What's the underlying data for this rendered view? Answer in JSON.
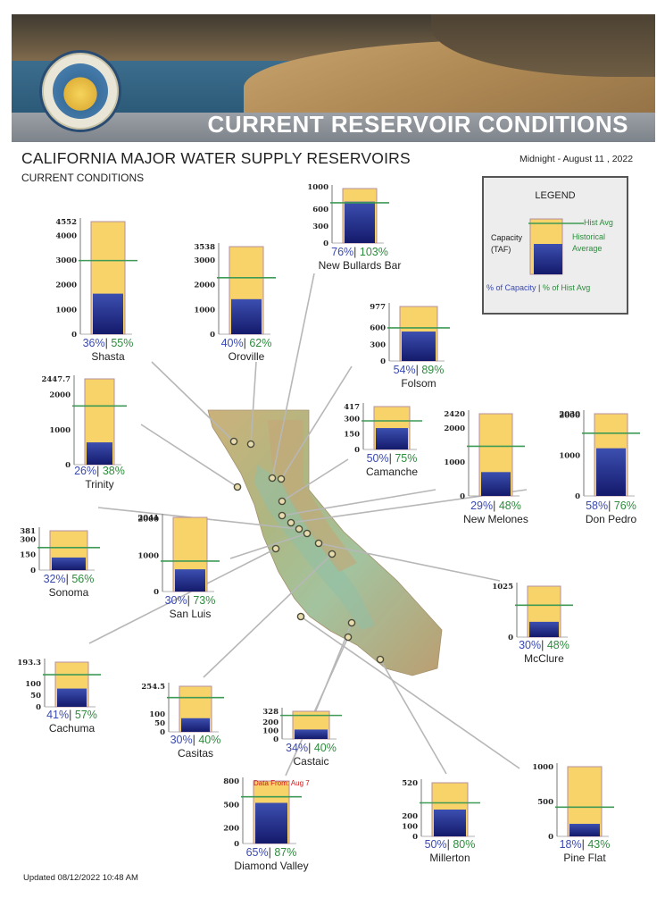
{
  "banner": {
    "title": "CURRENT RESERVOIR CONDITIONS",
    "seal_text": "DEPARTMENT OF WATER RESOURCES · STATE OF CALIFORNIA"
  },
  "header": {
    "title": "CALIFORNIA MAJOR WATER SUPPLY RESERVOIRS",
    "subtitle": "CURRENT CONDITIONS",
    "date": "Midnight - August 11 , 2022"
  },
  "legend": {
    "title": "LEGEND",
    "capacity": "Capacity",
    "capacity_unit": "(TAF)",
    "hist_avg": "Hist Avg",
    "historical": "Historical",
    "average": "Average",
    "pct_capacity": "% of Capacity",
    "separator": "|",
    "pct_hist": "% of Hist Avg"
  },
  "footer": {
    "updated": "Updated 08/12/2022 10:48 AM"
  },
  "colors": {
    "capacity_fill": "#f8d36a",
    "storage_top": "#3c4fb0",
    "storage_bottom": "#141a6b",
    "hist_line": "#3f9a55",
    "pct_capacity": "#3b4ab0",
    "pct_hist": "#2e8b3e"
  },
  "chart_data": [
    {
      "type": "bar",
      "name": "Shasta",
      "capacity": 4552,
      "storage": 1639,
      "hist_avg": 2976,
      "pct_capacity": "36%",
      "pct_hist_avg": "55%",
      "ticks": [
        "4552",
        "4000",
        "3000",
        "2000",
        "1000",
        "0"
      ]
    },
    {
      "type": "bar",
      "name": "Oroville",
      "capacity": 3538,
      "storage": 1415,
      "hist_avg": 2282,
      "pct_capacity": "40%",
      "pct_hist_avg": "62%",
      "ticks": [
        "3538",
        "3000",
        "2000",
        "1000",
        "0"
      ]
    },
    {
      "type": "bar",
      "name": "New Bullards Bar",
      "capacity": 966,
      "storage": 734,
      "hist_avg": 713,
      "pct_capacity": "76%",
      "pct_hist_avg": "103%",
      "ticks": [
        "1000",
        "600",
        "300",
        "0"
      ]
    },
    {
      "type": "bar",
      "name": "Folsom",
      "capacity": 977,
      "storage": 528,
      "hist_avg": 593,
      "pct_capacity": "54%",
      "pct_hist_avg": "89%",
      "ticks": [
        "977",
        "600",
        "300",
        "0"
      ]
    },
    {
      "type": "bar",
      "name": "Trinity",
      "capacity": 2447.7,
      "storage": 636,
      "hist_avg": 1675,
      "pct_capacity": "26%",
      "pct_hist_avg": "38%",
      "ticks": [
        "2447.7",
        "2000",
        "1000",
        "0"
      ]
    },
    {
      "type": "bar",
      "name": "Camanche",
      "capacity": 417,
      "storage": 208,
      "hist_avg": 278,
      "pct_capacity": "50%",
      "pct_hist_avg": "75%",
      "ticks": [
        "417",
        "300",
        "150",
        "0"
      ]
    },
    {
      "type": "bar",
      "name": "New Melones",
      "capacity": 2420,
      "storage": 702,
      "hist_avg": 1462,
      "pct_capacity": "29%",
      "pct_hist_avg": "48%",
      "ticks": [
        "2420",
        "2000",
        "1000",
        "0"
      ]
    },
    {
      "type": "bar",
      "name": "Don Pedro",
      "capacity": 2030,
      "storage": 1177,
      "hist_avg": 1549,
      "pct_capacity": "58%",
      "pct_hist_avg": "76%",
      "ticks": [
        "2030",
        "2000",
        "1000",
        "0"
      ]
    },
    {
      "type": "bar",
      "name": "Sonoma",
      "capacity": 381,
      "storage": 122,
      "hist_avg": 218,
      "pct_capacity": "32%",
      "pct_hist_avg": "56%",
      "ticks": [
        "381",
        "300",
        "150",
        "0"
      ]
    },
    {
      "type": "bar",
      "name": "San Luis",
      "capacity": 2041,
      "storage": 612,
      "hist_avg": 838,
      "pct_capacity": "30%",
      "pct_hist_avg": "73%",
      "ticks": [
        "2041",
        "2000",
        "1000",
        "0"
      ]
    },
    {
      "type": "bar",
      "name": "McClure",
      "capacity": 1025,
      "storage": 308,
      "hist_avg": 641,
      "pct_capacity": "30%",
      "pct_hist_avg": "48%",
      "ticks": [
        "1025",
        "0"
      ]
    },
    {
      "type": "bar",
      "name": "Cachuma",
      "capacity": 193.3,
      "storage": 79,
      "hist_avg": 139,
      "pct_capacity": "41%",
      "pct_hist_avg": "57%",
      "ticks": [
        "193.3",
        "100",
        "50",
        "0"
      ]
    },
    {
      "type": "bar",
      "name": "Casitas",
      "capacity": 254.5,
      "storage": 76,
      "hist_avg": 191,
      "pct_capacity": "30%",
      "pct_hist_avg": "40%",
      "ticks": [
        "254.5",
        "100",
        "50",
        "0"
      ]
    },
    {
      "type": "bar",
      "name": "Castaic",
      "capacity": 328,
      "storage": 112,
      "hist_avg": 279,
      "pct_capacity": "34%",
      "pct_hist_avg": "40%",
      "ticks": [
        "328",
        "200",
        "100",
        "0"
      ]
    },
    {
      "type": "bar",
      "name": "Diamond Valley",
      "capacity": 800,
      "storage": 520,
      "hist_avg": 598,
      "pct_capacity": "65%",
      "pct_hist_avg": "87%",
      "ticks": [
        "800",
        "500",
        "200",
        "0"
      ],
      "note": "Data From: Aug 7"
    },
    {
      "type": "bar",
      "name": "Millerton",
      "capacity": 520,
      "storage": 260,
      "hist_avg": 325,
      "pct_capacity": "50%",
      "pct_hist_avg": "80%",
      "ticks": [
        "520",
        "200",
        "100",
        "0"
      ]
    },
    {
      "type": "bar",
      "name": "Pine Flat",
      "capacity": 1000,
      "storage": 180,
      "hist_avg": 419,
      "pct_capacity": "18%",
      "pct_hist_avg": "43%",
      "ticks": [
        "1000",
        "500",
        "0"
      ]
    }
  ]
}
